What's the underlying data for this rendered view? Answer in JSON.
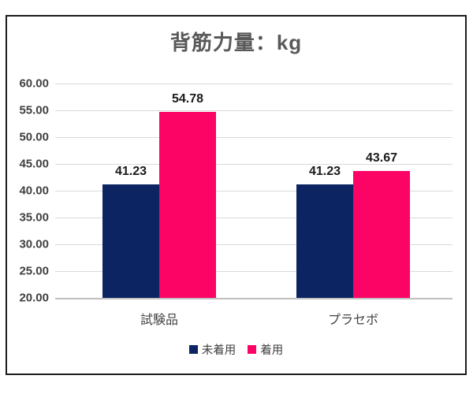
{
  "chart_data": {
    "type": "bar",
    "title": "背筋力量：kg",
    "categories": [
      "試験品",
      "プラセボ"
    ],
    "series": [
      {
        "name": "未着用",
        "color": "#0d2463",
        "values": [
          41.23,
          41.23
        ]
      },
      {
        "name": "着用",
        "color": "#fc0366",
        "values": [
          54.78,
          43.67
        ]
      }
    ],
    "value_labels": [
      "41.23",
      "54.78",
      "41.23",
      "43.67"
    ],
    "ylim": [
      20,
      60
    ],
    "ytick_step": 5,
    "yticks": [
      "60.00",
      "55.00",
      "50.00",
      "45.00",
      "40.00",
      "35.00",
      "30.00",
      "25.00",
      "20.00"
    ],
    "grid": true,
    "legend_position": "bottom",
    "xlabel": "",
    "ylabel": ""
  },
  "colors": {
    "frame_border": "#1c1c1c",
    "title_text": "#595959",
    "tick_text": "#404040",
    "category_text": "#444444",
    "value_label_text": "#1a1a1a",
    "gridline": "#d9d9d9",
    "axis_line": "#bfbfbf",
    "background": "#ffffff"
  }
}
